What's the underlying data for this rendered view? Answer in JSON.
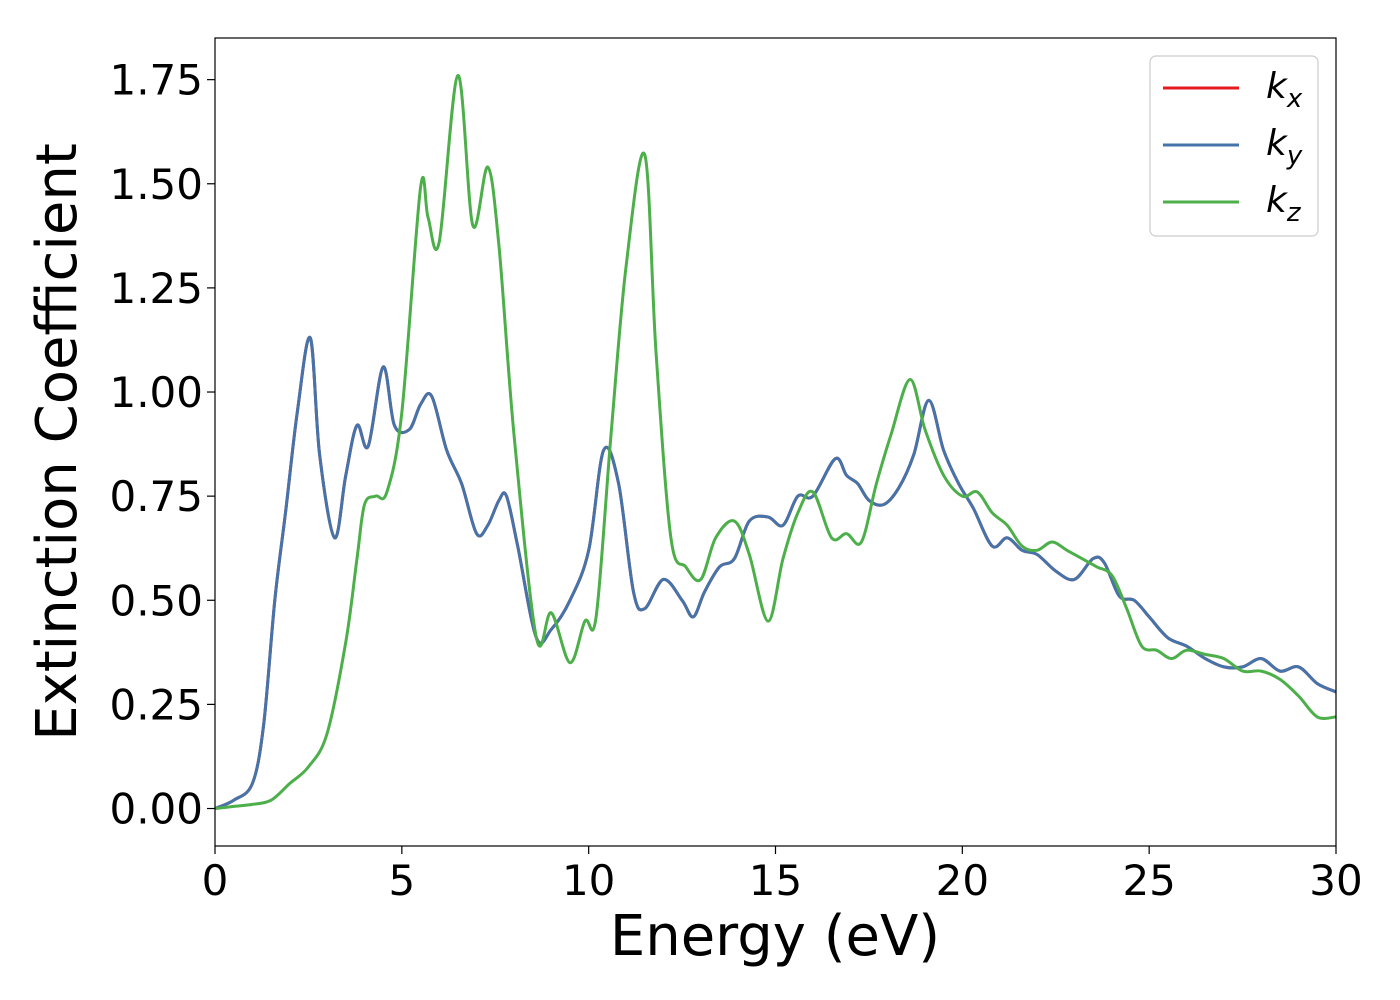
{
  "chart_data": {
    "type": "line",
    "title": "",
    "xlabel": "Energy (eV)",
    "ylabel": "Extinction Coefficient",
    "xlim": [
      0,
      30
    ],
    "ylim": [
      -0.09,
      1.85
    ],
    "xticks": [
      0,
      5,
      10,
      15,
      20,
      25,
      30
    ],
    "xtick_labels": [
      "0",
      "5",
      "10",
      "15",
      "20",
      "25",
      "30"
    ],
    "yticks": [
      0,
      0.25,
      0.5,
      0.75,
      1.0,
      1.25,
      1.5,
      1.75
    ],
    "ytick_labels": [
      "0.00",
      "0.25",
      "0.50",
      "0.75",
      "1.00",
      "1.25",
      "1.50",
      "1.75"
    ],
    "grid": false,
    "legend_position": "top-right",
    "series": [
      {
        "name": "k_x",
        "label_main": "k",
        "label_sub": "x",
        "color": "#e41a1c",
        "x": [
          0,
          0.5,
          1,
          1.3,
          1.6,
          1.9,
          2.2,
          2.55,
          2.8,
          3.2,
          3.5,
          3.8,
          4.1,
          4.5,
          4.8,
          5.2,
          5.5,
          5.8,
          6.2,
          6.6,
          7.0,
          7.3,
          7.6,
          7.8,
          8.1,
          8.6,
          9.0,
          9.5,
          10.0,
          10.4,
          10.8,
          11.2,
          11.5,
          12.0,
          12.5,
          12.8,
          13.1,
          13.5,
          13.9,
          14.3,
          14.8,
          15.2,
          15.6,
          16.0,
          16.6,
          16.9,
          17.2,
          17.5,
          17.9,
          18.3,
          18.7,
          19.1,
          19.5,
          19.9,
          20.3,
          20.8,
          21.2,
          21.6,
          22.0,
          22.5,
          23.0,
          23.5,
          23.8,
          24.2,
          24.6,
          25.0,
          25.5,
          26.0,
          26.5,
          27.0,
          27.5,
          28.0,
          28.5,
          29.0,
          29.5,
          30.0
        ],
        "y": [
          0,
          0.02,
          0.06,
          0.2,
          0.5,
          0.72,
          0.95,
          1.13,
          0.85,
          0.65,
          0.8,
          0.92,
          0.87,
          1.06,
          0.92,
          0.91,
          0.97,
          0.99,
          0.86,
          0.78,
          0.66,
          0.68,
          0.74,
          0.75,
          0.63,
          0.41,
          0.43,
          0.5,
          0.62,
          0.86,
          0.78,
          0.52,
          0.48,
          0.55,
          0.5,
          0.46,
          0.52,
          0.58,
          0.6,
          0.69,
          0.7,
          0.68,
          0.75,
          0.75,
          0.84,
          0.8,
          0.78,
          0.74,
          0.73,
          0.77,
          0.85,
          0.98,
          0.86,
          0.78,
          0.72,
          0.63,
          0.65,
          0.62,
          0.61,
          0.57,
          0.55,
          0.6,
          0.59,
          0.51,
          0.5,
          0.46,
          0.41,
          0.39,
          0.36,
          0.34,
          0.34,
          0.36,
          0.33,
          0.34,
          0.3,
          0.28
        ]
      },
      {
        "name": "k_y",
        "label_main": "k",
        "label_sub": "y",
        "color": "#4474aa",
        "x": [
          0,
          0.5,
          1,
          1.3,
          1.6,
          1.9,
          2.2,
          2.55,
          2.8,
          3.2,
          3.5,
          3.8,
          4.1,
          4.5,
          4.8,
          5.2,
          5.5,
          5.8,
          6.2,
          6.6,
          7.0,
          7.3,
          7.6,
          7.8,
          8.1,
          8.6,
          9.0,
          9.5,
          10.0,
          10.4,
          10.8,
          11.2,
          11.5,
          12.0,
          12.5,
          12.8,
          13.1,
          13.5,
          13.9,
          14.3,
          14.8,
          15.2,
          15.6,
          16.0,
          16.6,
          16.9,
          17.2,
          17.5,
          17.9,
          18.3,
          18.7,
          19.1,
          19.5,
          19.9,
          20.3,
          20.8,
          21.2,
          21.6,
          22.0,
          22.5,
          23.0,
          23.5,
          23.8,
          24.2,
          24.6,
          25.0,
          25.5,
          26.0,
          26.5,
          27.0,
          27.5,
          28.0,
          28.5,
          29.0,
          29.5,
          30.0
        ],
        "y": [
          0,
          0.02,
          0.06,
          0.2,
          0.5,
          0.72,
          0.95,
          1.13,
          0.85,
          0.65,
          0.8,
          0.92,
          0.87,
          1.06,
          0.92,
          0.91,
          0.97,
          0.99,
          0.86,
          0.78,
          0.66,
          0.68,
          0.74,
          0.75,
          0.63,
          0.41,
          0.43,
          0.5,
          0.62,
          0.86,
          0.78,
          0.52,
          0.48,
          0.55,
          0.5,
          0.46,
          0.52,
          0.58,
          0.6,
          0.69,
          0.7,
          0.68,
          0.75,
          0.75,
          0.84,
          0.8,
          0.78,
          0.74,
          0.73,
          0.77,
          0.85,
          0.98,
          0.86,
          0.78,
          0.72,
          0.63,
          0.65,
          0.62,
          0.61,
          0.57,
          0.55,
          0.6,
          0.59,
          0.51,
          0.5,
          0.46,
          0.41,
          0.39,
          0.36,
          0.34,
          0.34,
          0.36,
          0.33,
          0.34,
          0.3,
          0.28
        ]
      },
      {
        "name": "k_z",
        "label_main": "k",
        "label_sub": "z",
        "color": "#4daf4a",
        "x": [
          0,
          0.5,
          1,
          1.5,
          2.0,
          2.5,
          3.0,
          3.5,
          3.8,
          4.0,
          4.3,
          4.6,
          5.0,
          5.5,
          5.7,
          6.0,
          6.5,
          6.9,
          7.3,
          7.6,
          8.0,
          8.6,
          9.0,
          9.5,
          9.9,
          10.2,
          10.6,
          11.0,
          11.5,
          11.8,
          12.2,
          12.6,
          13.0,
          13.4,
          13.9,
          14.3,
          14.8,
          15.2,
          15.6,
          16.0,
          16.5,
          16.9,
          17.3,
          17.7,
          18.1,
          18.6,
          19.0,
          19.5,
          20.0,
          20.4,
          20.8,
          21.2,
          21.6,
          22.0,
          22.4,
          22.8,
          23.2,
          23.6,
          24.0,
          24.4,
          24.8,
          25.2,
          25.6,
          26.0,
          26.5,
          27.0,
          27.5,
          28.0,
          28.5,
          29.0,
          29.5,
          30.0
        ],
        "y": [
          0,
          0.005,
          0.01,
          0.02,
          0.06,
          0.1,
          0.18,
          0.4,
          0.6,
          0.73,
          0.75,
          0.76,
          0.95,
          1.49,
          1.42,
          1.36,
          1.76,
          1.4,
          1.54,
          1.35,
          0.9,
          0.41,
          0.47,
          0.35,
          0.45,
          0.46,
          0.9,
          1.3,
          1.57,
          1.1,
          0.65,
          0.58,
          0.55,
          0.65,
          0.69,
          0.61,
          0.45,
          0.6,
          0.71,
          0.76,
          0.65,
          0.66,
          0.64,
          0.78,
          0.9,
          1.03,
          0.91,
          0.8,
          0.75,
          0.76,
          0.71,
          0.68,
          0.63,
          0.62,
          0.64,
          0.62,
          0.6,
          0.58,
          0.56,
          0.48,
          0.39,
          0.38,
          0.36,
          0.38,
          0.37,
          0.36,
          0.33,
          0.33,
          0.31,
          0.27,
          0.22,
          0.22
        ]
      }
    ]
  }
}
